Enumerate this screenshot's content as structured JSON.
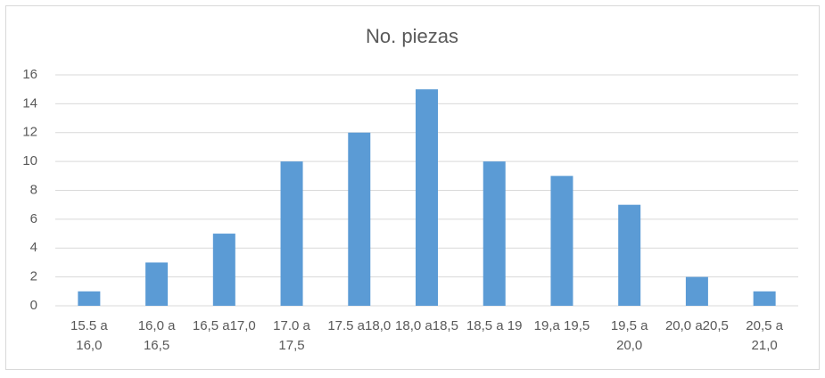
{
  "chart_data": {
    "type": "bar",
    "title": "No. piezas",
    "categories": [
      "15.5 a 16,0",
      "16,0 a 16,5",
      "16,5 a17,0",
      "17.0 a 17,5",
      "17.5 a18,0",
      "18,0 a18,5",
      "18,5 a 19",
      "19,a 19,5",
      "19,5 a 20,0",
      "20,0 a20,5",
      "20,5 a 21,0"
    ],
    "values": [
      1,
      3,
      5,
      10,
      12,
      15,
      10,
      9,
      7,
      2,
      1
    ],
    "color": "#5b9bd5",
    "ylim": [
      0,
      16
    ],
    "yticks": [
      0,
      2,
      4,
      6,
      8,
      10,
      12,
      14,
      16
    ],
    "grid": true
  }
}
